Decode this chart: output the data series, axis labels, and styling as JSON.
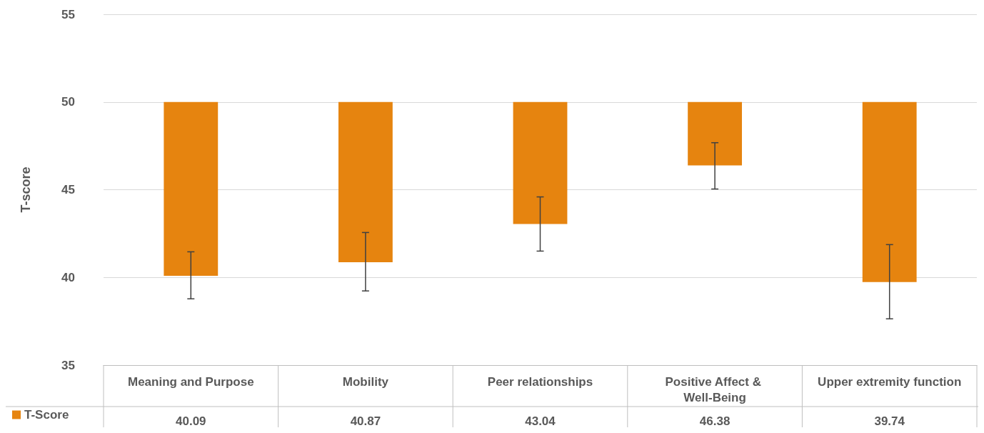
{
  "chart_data": {
    "type": "bar",
    "ylabel": "T-score",
    "categories": [
      "Meaning and Purpose",
      "Mobility",
      "Peer relationships",
      "Positive Affect & Well-Being",
      "Upper extremity function"
    ],
    "series": [
      {
        "name": "T-Score",
        "color": "#e6840f",
        "base": [
          50,
          50,
          50,
          50,
          50
        ],
        "values": [
          -9.91,
          -9.13,
          -6.96,
          -3.62,
          -10.26
        ],
        "value_labels": [
          "40.09",
          "40.87",
          "43.04",
          "46.38",
          "39.74"
        ],
        "errors": [
          [
            38.78,
            41.46
          ],
          [
            39.23,
            42.56
          ],
          [
            41.5,
            44.59
          ],
          [
            45.04,
            47.68
          ],
          [
            37.64,
            41.87
          ]
        ]
      }
    ],
    "ylim": [
      35,
      55
    ],
    "yticks": [
      35,
      40,
      45,
      50,
      55
    ],
    "grid": "y",
    "legend": "bottom left"
  }
}
